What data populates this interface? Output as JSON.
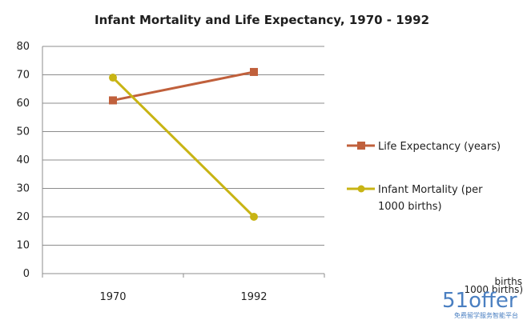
{
  "chart_data": {
    "type": "line",
    "title": "Infant Mortality and Life Expectancy, 1970  - 1992",
    "categories": [
      "1970",
      "1992"
    ],
    "ylim": [
      0,
      80
    ],
    "yticks": [
      0,
      10,
      20,
      30,
      40,
      50,
      60,
      70,
      80
    ],
    "grid": true,
    "legend_position": "right",
    "series": [
      {
        "name": "Life Expectancy (years)",
        "values": [
          61,
          71
        ],
        "color": "#c0603c",
        "marker": "square"
      },
      {
        "name_lines": [
          "Infant Mortality  (per",
          "1000 births)"
        ],
        "values": [
          69,
          20
        ],
        "color": "#c8b414",
        "marker": "circle"
      }
    ]
  },
  "residual_label": {
    "line1": "births",
    "line2": "1000 births)"
  },
  "watermark": {
    "logo_text": "51offer",
    "tagline": "免费留学服务智能平台",
    "color": "#4a7fc1"
  }
}
